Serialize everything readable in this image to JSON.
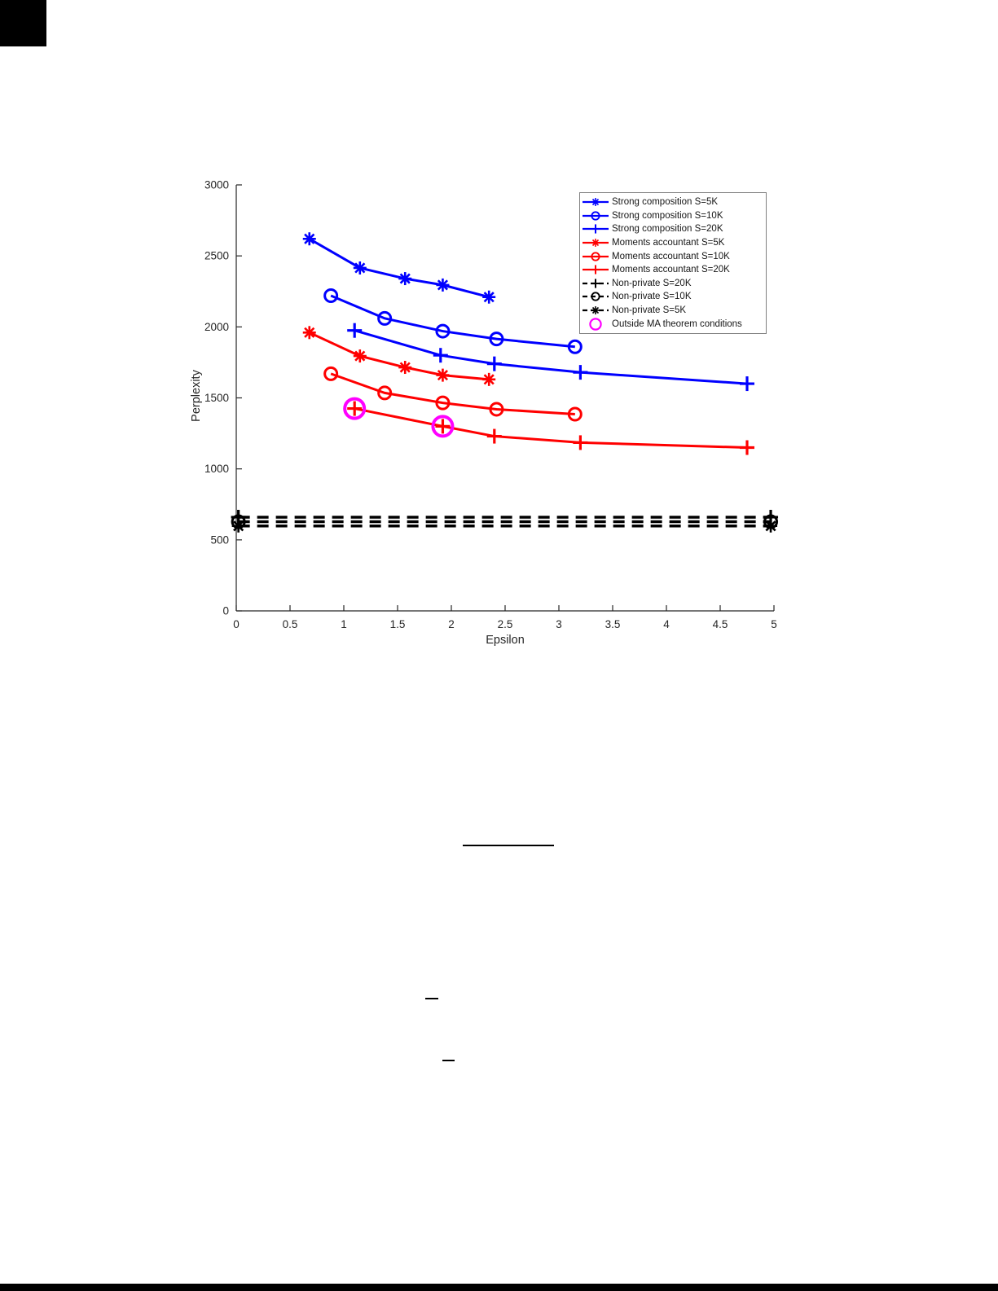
{
  "page": {
    "background": "#ffffff"
  },
  "chart_data": {
    "type": "line",
    "title": "",
    "xlabel": "Epsilon",
    "ylabel": "Perplexity",
    "xlim": [
      0,
      5
    ],
    "ylim": [
      0,
      3000
    ],
    "xticks": [
      0,
      0.5,
      1,
      1.5,
      2,
      2.5,
      3,
      3.5,
      4,
      4.5,
      5
    ],
    "yticks": [
      0,
      500,
      1000,
      1500,
      2000,
      2500,
      3000
    ],
    "grid": false,
    "legend_position": "top-right",
    "colors": {
      "strong_composition": "#0000FF",
      "moments_accountant": "#FF0000",
      "non_private": "#000000",
      "outside_ma": "#FF00FF",
      "axis": "#262626"
    },
    "series": [
      {
        "name": "Strong composition S=5K",
        "color": "#0000FF",
        "marker": "asterisk",
        "linestyle": "solid",
        "x": [
          0.68,
          1.15,
          1.57,
          1.92,
          2.35
        ],
        "y": [
          2620,
          2415,
          2340,
          2295,
          2210
        ]
      },
      {
        "name": "Strong composition S=10K",
        "color": "#0000FF",
        "marker": "circle",
        "linestyle": "solid",
        "x": [
          0.88,
          1.38,
          1.92,
          2.42,
          3.15
        ],
        "y": [
          2220,
          2060,
          1970,
          1915,
          1860
        ]
      },
      {
        "name": "Strong composition S=20K",
        "color": "#0000FF",
        "marker": "plus",
        "linestyle": "solid",
        "x": [
          1.1,
          1.9,
          2.4,
          3.2,
          4.75
        ],
        "y": [
          1975,
          1800,
          1740,
          1680,
          1600
        ]
      },
      {
        "name": "Moments accountant S=5K",
        "color": "#FF0000",
        "marker": "asterisk",
        "linestyle": "solid",
        "x": [
          0.68,
          1.15,
          1.57,
          1.92,
          2.35
        ],
        "y": [
          1960,
          1795,
          1715,
          1660,
          1630
        ]
      },
      {
        "name": "Moments accountant S=10K",
        "color": "#FF0000",
        "marker": "circle",
        "linestyle": "solid",
        "x": [
          0.88,
          1.38,
          1.92,
          2.42,
          3.15
        ],
        "y": [
          1670,
          1535,
          1465,
          1420,
          1385
        ]
      },
      {
        "name": "Moments accountant S=20K",
        "color": "#FF0000",
        "marker": "plus",
        "linestyle": "solid",
        "x": [
          1.1,
          1.92,
          2.4,
          3.2,
          4.75
        ],
        "y": [
          1425,
          1300,
          1230,
          1185,
          1150
        ]
      },
      {
        "name": "Non-private S=20K",
        "color": "#000000",
        "marker": "plus",
        "linestyle": "dashed",
        "x": [
          0.02,
          4.97
        ],
        "y": [
          660,
          660
        ]
      },
      {
        "name": "Non-private S=10K",
        "color": "#000000",
        "marker": "circle",
        "linestyle": "dashed",
        "x": [
          0.02,
          4.97
        ],
        "y": [
          628,
          628
        ]
      },
      {
        "name": "Non-private S=5K",
        "color": "#000000",
        "marker": "asterisk",
        "linestyle": "dashed",
        "x": [
          0.02,
          4.97
        ],
        "y": [
          598,
          598
        ]
      },
      {
        "name": "Outside MA theorem conditions",
        "color": "#FF00FF",
        "marker": "circle-large",
        "linestyle": "none",
        "x": [
          1.1,
          1.92
        ],
        "y": [
          1425,
          1300
        ]
      }
    ]
  }
}
